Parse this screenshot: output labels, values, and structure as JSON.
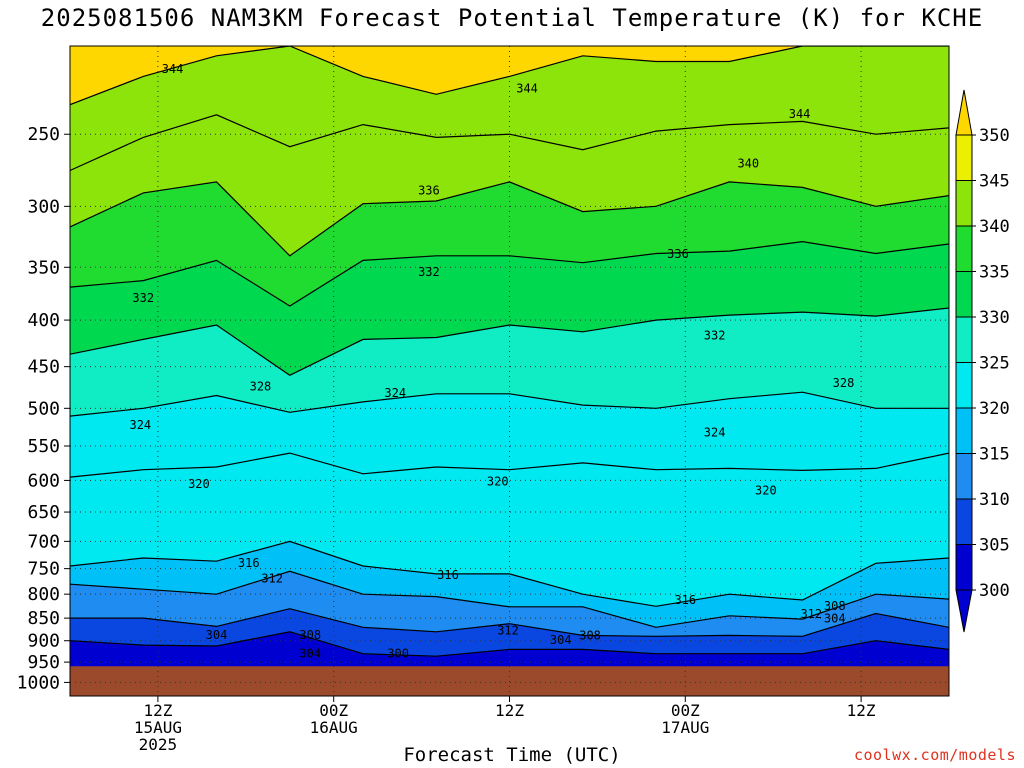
{
  "title": "2025081506 NAM3KM Forecast Potential Temperature (K) for KCHE",
  "credit": "coolwx.com/models",
  "colors": {
    "ground": "#9b4a2c",
    "fill": [
      "#0000d0",
      "#0a46e0",
      "#1e8cf0",
      "#00c0f8",
      "#00e8f0",
      "#10ecc4",
      "#00d850",
      "#20dc30",
      "#8ce40a",
      "#ecf000",
      "#ffd700"
    ],
    "legend": [
      "#0000d0",
      "#0a46e0",
      "#1e8cf0",
      "#00c0f8",
      "#00e8f0",
      "#10ecc4",
      "#00d850",
      "#20dc30",
      "#8ce40a",
      "#ecf000",
      "#ffd700"
    ]
  },
  "chart_data": {
    "type": "contour",
    "title": "2025081506 NAM3KM Forecast Potential Temperature (K) for KCHE",
    "xlabel": "Forecast Time (UTC)",
    "ylabel": "",
    "variable": "Potential Temperature (K)",
    "y_scale": "log-pressure",
    "y_ticks": [
      250,
      300,
      350,
      400,
      450,
      500,
      550,
      600,
      650,
      700,
      750,
      800,
      850,
      900,
      950,
      1000
    ],
    "x_ticks": [
      {
        "hour": 6,
        "lines": [
          "12Z",
          "15AUG",
          "2025"
        ]
      },
      {
        "hour": 18,
        "lines": [
          "00Z",
          "16AUG"
        ]
      },
      {
        "hour": 30,
        "lines": [
          "12Z"
        ]
      },
      {
        "hour": 42,
        "lines": [
          "00Z",
          "17AUG"
        ]
      },
      {
        "hour": 54,
        "lines": [
          "12Z"
        ]
      }
    ],
    "x_range_hours": [
      0,
      60
    ],
    "y_range_hpa": [
      200,
      1035
    ],
    "surface_pressure_hpa": 960,
    "colorbar_levels": [
      300,
      305,
      310,
      315,
      320,
      325,
      330,
      335,
      340,
      345,
      350
    ],
    "colorbar_extend": "both",
    "grid": "dotted",
    "contour_interval_k": 4,
    "isentropes": [
      {
        "theta": 344,
        "pressure": [
          232,
          216,
          205,
          200,
          216,
          226,
          216,
          205,
          208,
          208,
          200,
          200,
          200
        ]
      },
      {
        "theta": 340,
        "pressure": [
          274,
          252,
          238,
          258,
          244,
          252,
          250,
          260,
          248,
          244,
          242,
          250,
          246
        ]
      },
      {
        "theta": 336,
        "pressure": [
          316,
          290,
          282,
          340,
          298,
          296,
          282,
          304,
          300,
          282,
          286,
          300,
          292
        ]
      },
      {
        "theta": 332,
        "pressure": [
          368,
          362,
          344,
          386,
          344,
          340,
          340,
          346,
          338,
          336,
          328,
          338,
          330
        ]
      },
      {
        "theta": 328,
        "pressure": [
          436,
          420,
          405,
          460,
          420,
          418,
          405,
          412,
          400,
          395,
          392,
          396,
          388
        ]
      },
      {
        "theta": 324,
        "pressure": [
          510,
          500,
          484,
          505,
          492,
          482,
          482,
          496,
          500,
          488,
          480,
          500,
          500
        ]
      },
      {
        "theta": 320,
        "pressure": [
          595,
          584,
          580,
          560,
          590,
          580,
          584,
          574,
          584,
          582,
          585,
          582,
          560
        ]
      },
      {
        "theta": 316,
        "pressure": [
          745,
          730,
          736,
          700,
          745,
          760,
          760,
          800,
          825,
          800,
          812,
          740,
          730
        ]
      },
      {
        "theta": 312,
        "pressure": [
          780,
          790,
          800,
          755,
          800,
          805,
          826,
          826,
          870,
          845,
          852,
          800,
          810
        ]
      },
      {
        "theta": 308,
        "pressure": [
          850,
          850,
          868,
          830,
          870,
          880,
          862,
          888,
          890,
          888,
          890,
          840,
          870
        ]
      },
      {
        "theta": 304,
        "pressure": [
          900,
          910,
          912,
          880,
          930,
          936,
          920,
          920,
          930,
          930,
          930,
          900,
          920
        ]
      }
    ],
    "contour_labels": [
      {
        "text": "344",
        "hour": 7.0,
        "p": 214
      },
      {
        "text": "344",
        "hour": 31.2,
        "p": 225
      },
      {
        "text": "344",
        "hour": 49.8,
        "p": 240
      },
      {
        "text": "340",
        "hour": 46.3,
        "p": 272
      },
      {
        "text": "336",
        "hour": 24.5,
        "p": 291
      },
      {
        "text": "336",
        "hour": 41.5,
        "p": 342
      },
      {
        "text": "332",
        "hour": 5.0,
        "p": 382
      },
      {
        "text": "332",
        "hour": 24.5,
        "p": 358
      },
      {
        "text": "332",
        "hour": 44.0,
        "p": 420
      },
      {
        "text": "328",
        "hour": 13.0,
        "p": 478
      },
      {
        "text": "328",
        "hour": 52.8,
        "p": 474
      },
      {
        "text": "324",
        "hour": 4.8,
        "p": 527
      },
      {
        "text": "324",
        "hour": 22.2,
        "p": 486
      },
      {
        "text": "324",
        "hour": 44.0,
        "p": 537
      },
      {
        "text": "320",
        "hour": 8.8,
        "p": 612
      },
      {
        "text": "320",
        "hour": 29.2,
        "p": 608
      },
      {
        "text": "320",
        "hour": 47.5,
        "p": 622
      },
      {
        "text": "316",
        "hour": 12.2,
        "p": 747
      },
      {
        "text": "316",
        "hour": 25.8,
        "p": 770
      },
      {
        "text": "316",
        "hour": 42.0,
        "p": 820
      },
      {
        "text": "312",
        "hour": 13.8,
        "p": 777
      },
      {
        "text": "312",
        "hour": 29.9,
        "p": 886
      },
      {
        "text": "312",
        "hour": 50.6,
        "p": 850
      },
      {
        "text": "308",
        "hour": 16.4,
        "p": 896
      },
      {
        "text": "308",
        "hour": 35.5,
        "p": 897
      },
      {
        "text": "308",
        "hour": 52.2,
        "p": 833
      },
      {
        "text": "304",
        "hour": 10.0,
        "p": 896
      },
      {
        "text": "304",
        "hour": 16.4,
        "p": 939
      },
      {
        "text": "304",
        "hour": 33.5,
        "p": 908
      },
      {
        "text": "304",
        "hour": 52.2,
        "p": 859
      },
      {
        "text": "300",
        "hour": 22.4,
        "p": 939
      }
    ]
  }
}
